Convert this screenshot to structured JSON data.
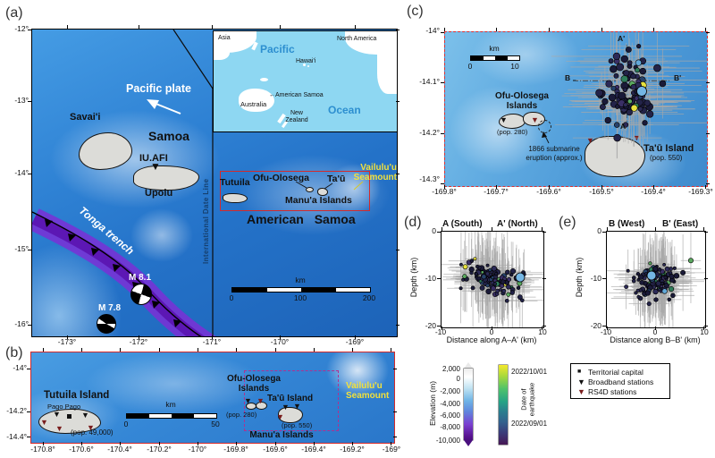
{
  "figure": {
    "panel_labels": {
      "a": "(a)",
      "b": "(b)",
      "c": "(c)",
      "d": "(d)",
      "e": "(e)"
    }
  },
  "panel_a": {
    "yticks": [
      "-12°",
      "-13°",
      "-14°",
      "-15°",
      "-16°"
    ],
    "xticks": [
      "-173°",
      "-172°",
      "-171°",
      "-170°",
      "-169°"
    ],
    "labels": {
      "pacific_plate": "Pacific plate",
      "samoa": "Samoa",
      "savaii": "Savai'i",
      "station": "IU.AFI",
      "upolu": "Upolu",
      "tonga_trench": "Tonga trench",
      "m81": "M 8.1",
      "m78": "M 7.8",
      "american_samoa": "American  Samoa",
      "tutuila": "Tutuila",
      "ofu_olosega": "Ofu-Olosega",
      "tau": "Ta'ū",
      "manua": "Manu'a Islands",
      "vailuluu_1": "Vailulu'u",
      "vailuluu_2": "Seamount",
      "date_line": "International Date Line"
    },
    "scalebar": {
      "unit": "km",
      "start": "0",
      "mid": "100",
      "end": "200"
    },
    "inset": {
      "asia": "Asia",
      "pacific": "Pacific",
      "hawaii": "Hawai'i",
      "north_america": "North America",
      "american_samoa": "←American Samoa",
      "australia": "Australia",
      "new_zealand_1": "New",
      "new_zealand_2": "Zealand",
      "ocean": "Ocean"
    }
  },
  "panel_b": {
    "yticks": [
      "-14°",
      "-14.2°",
      "-14.4°"
    ],
    "xticks": [
      "-170.8°",
      "-170.6°",
      "-170.4°",
      "-170.2°",
      "-170°",
      "-169.8°",
      "-169.6°",
      "-169.4°",
      "-169.2°",
      "-169°"
    ],
    "labels": {
      "tutuila_island": "Tutuila Island",
      "pago_pago": "Pago Pago",
      "pop_tutuila": "(pop. 49,000)",
      "ofu_1": "Ofu-Olosega",
      "ofu_2": "Islands",
      "pop_ofu": "(pop. 280)",
      "tau_island": "Ta'ū Island",
      "pop_tau": "(pop. 550)",
      "manua": "Manu'a Islands",
      "vailuluu_1": "Vailulu'u",
      "vailuluu_2": "Seamount"
    },
    "scalebar": {
      "unit": "km",
      "start": "0",
      "end": "50"
    }
  },
  "panel_c": {
    "yticks": [
      "-14°",
      "-14.1°",
      "-14.2°",
      "-14.3°"
    ],
    "xticks": [
      "-169.8°",
      "-169.7°",
      "-169.6°",
      "-169.5°",
      "-169.4°",
      "-169.3°"
    ],
    "labels": {
      "ofu_1": "Ofu-Olosega",
      "ofu_2": "Islands",
      "pop_ofu": "(pop. 280)",
      "eruption_1": "1866 submarine",
      "eruption_2": "eruption (approx.)",
      "tau_island": "Ta'ū Island",
      "pop_tau": "(pop. 550)",
      "a": "A",
      "a_prime": "A'",
      "b": "B",
      "b_prime": "B'"
    },
    "scalebar": {
      "unit": "km",
      "start": "0",
      "end": "10"
    }
  },
  "panel_d": {
    "title_left": "A (South)",
    "title_right": "A' (North)",
    "ylabel": "Depth (km)",
    "yticks": [
      "0",
      "-10",
      "-20"
    ],
    "xticks": [
      "-10",
      "0",
      "10"
    ],
    "xlabel": "Distance along A–A' (km)"
  },
  "panel_e": {
    "title_left": "B (West)",
    "title_right": "B' (East)",
    "ylabel": "Depth (km)",
    "yticks": [
      "0",
      "-10",
      "-20"
    ],
    "xticks": [
      "-10",
      "0",
      "10"
    ],
    "xlabel": "Distance along B–B' (km)"
  },
  "colorbars": {
    "elevation": {
      "label": "Elevation (m)",
      "ticks": [
        "2,000",
        "0",
        "-2,000",
        "-4,000",
        "-6,000",
        "-8,000",
        "-10,000"
      ]
    },
    "date": {
      "label_1": "Date of",
      "label_2": "earthquake",
      "top": "2022/10/01",
      "bottom": "2022/09/01"
    }
  },
  "legend": {
    "items": [
      {
        "label": "Territorial capital",
        "marker": "square",
        "color": "#111111"
      },
      {
        "label": "Broadband stations",
        "marker": "triangle-down",
        "color": "#111111"
      },
      {
        "label": "RS4D stations",
        "marker": "triangle-down",
        "color": "#7a1d1d"
      }
    ]
  },
  "chart_data": {
    "type": "scatter",
    "description": "2022 Ta'u Island (Manu'a, American Samoa) earthquake swarm: map-view epicenters with location error bars (panel c) and two depth cross-sections (panels d, e)",
    "date_range": [
      "2022/09/01",
      "2022/10/01"
    ],
    "map_cluster": {
      "lon_center": -169.45,
      "lat_center": -14.09,
      "lon_sigma_deg": 0.022,
      "lat_sigma_deg": 0.037,
      "count": 95
    },
    "section_AA": {
      "orientation": "A (South) to A' (North)",
      "xlim_km": [
        -10,
        10
      ],
      "depth_lim_km": [
        -20,
        0
      ],
      "depth_mode_km": -10,
      "depth_sigma_km": 1.6,
      "along_sigma_km": 2.9,
      "count": 115
    },
    "section_BB": {
      "orientation": "B (West) to B' (East)",
      "xlim_km": [
        -10,
        10
      ],
      "depth_lim_km": [
        -20,
        0
      ],
      "depth_mode_km": -10.5,
      "depth_sigma_km": 1.7,
      "along_sigma_km": 2.2,
      "count": 115
    },
    "point_palette": [
      "#1a1a38",
      "#232349",
      "#2c2a57",
      "#3a2f66",
      "#27426b",
      "#2f7d5a",
      "#5aa85f",
      "#c9d84a",
      "#e8e23e",
      "#62a8d8"
    ],
    "palette_weights": [
      0.3,
      0.55,
      0.72,
      0.82,
      0.87,
      0.91,
      0.95,
      0.975,
      0.99,
      1.0
    ],
    "highlight_color": "#74b6e4",
    "errorbar_color": "#a8a8a8"
  },
  "colors": {
    "ocean_deep": "#1d63b8",
    "ocean_mid": "#2f82d4",
    "ocean_shallow": "#7cc0ea",
    "inset_ocean": "#8ed7f2",
    "trench_purple": "#6a0fd0",
    "land_gray": "#dcdcd8",
    "highlight_box_red": "#d42a2a",
    "dashed_box_magenta": "#b03090",
    "seamount_label_yellow": "#f2e13c",
    "rs4d_red": "#7a1d1d",
    "date_line_blue": "#16406e"
  }
}
